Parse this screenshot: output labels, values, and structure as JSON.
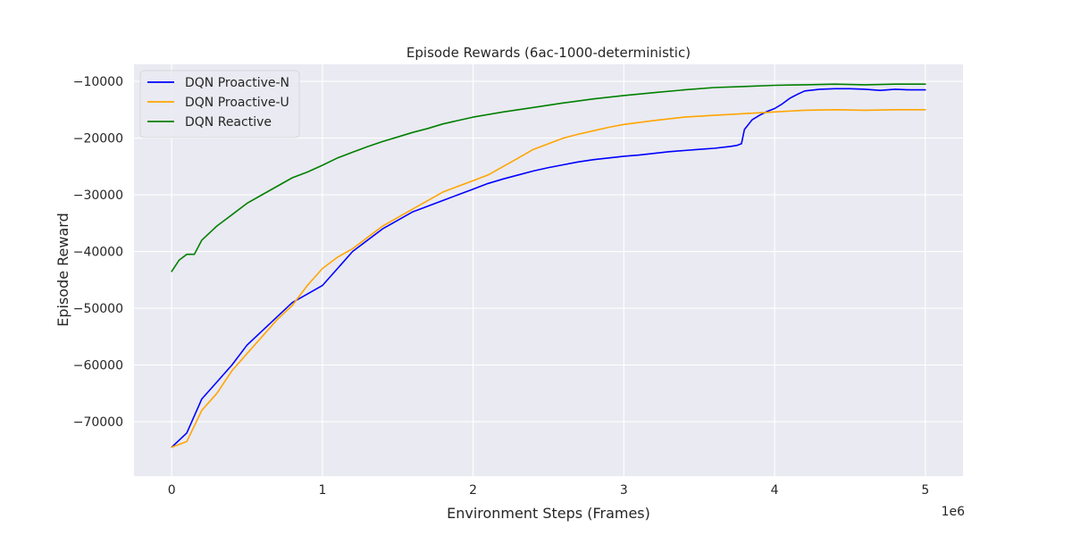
{
  "chart_data": {
    "type": "line",
    "title": "Episode Rewards (6ac-1000-deterministic)",
    "xlabel": "Environment Steps (Frames)",
    "ylabel": "Episode Reward",
    "x_multiplier_label": "1e6",
    "x_scale": 1000000,
    "xlim": [
      -0.25,
      5.25
    ],
    "ylim": [
      -79600,
      -7000
    ],
    "xticks": [
      0,
      1,
      2,
      3,
      4,
      5
    ],
    "xtick_labels": [
      "0",
      "1",
      "2",
      "3",
      "4",
      "5"
    ],
    "yticks": [
      -70000,
      -60000,
      -50000,
      -40000,
      -30000,
      -20000,
      -10000
    ],
    "ytick_labels": [
      "−70000",
      "−60000",
      "−50000",
      "−40000",
      "−30000",
      "−20000",
      "−10000"
    ],
    "grid": true,
    "legend_position": "top-left",
    "background_color": "#eaeaf2",
    "series": [
      {
        "name": "DQN Proactive-N",
        "color": "#0000ff",
        "x": [
          0,
          0.1,
          0.2,
          0.3,
          0.4,
          0.5,
          0.6,
          0.7,
          0.8,
          0.9,
          1.0,
          1.1,
          1.2,
          1.3,
          1.4,
          1.5,
          1.6,
          1.7,
          1.8,
          1.9,
          2.0,
          2.1,
          2.2,
          2.3,
          2.4,
          2.5,
          2.6,
          2.7,
          2.8,
          2.9,
          3.0,
          3.1,
          3.2,
          3.3,
          3.4,
          3.5,
          3.6,
          3.7,
          3.75,
          3.78,
          3.8,
          3.85,
          3.9,
          3.95,
          4.0,
          4.05,
          4.1,
          4.15,
          4.2,
          4.3,
          4.4,
          4.5,
          4.6,
          4.7,
          4.8,
          4.9,
          5.0
        ],
        "y": [
          -74500,
          -72000,
          -66000,
          -63000,
          -60000,
          -56500,
          -54000,
          -51500,
          -49000,
          -47500,
          -46000,
          -43000,
          -40000,
          -38000,
          -36000,
          -34500,
          -33000,
          -32000,
          -31000,
          -30000,
          -29000,
          -28000,
          -27200,
          -26500,
          -25800,
          -25200,
          -24700,
          -24200,
          -23800,
          -23500,
          -23200,
          -23000,
          -22700,
          -22400,
          -22200,
          -22000,
          -21800,
          -21500,
          -21300,
          -21000,
          -18500,
          -16800,
          -16000,
          -15300,
          -14800,
          -14000,
          -13000,
          -12300,
          -11700,
          -11400,
          -11300,
          -11300,
          -11400,
          -11600,
          -11400,
          -11500,
          -11500
        ]
      },
      {
        "name": "DQN Proactive-U",
        "color": "#ffa500",
        "x": [
          0,
          0.1,
          0.2,
          0.3,
          0.4,
          0.5,
          0.6,
          0.7,
          0.8,
          0.9,
          1.0,
          1.1,
          1.2,
          1.3,
          1.4,
          1.5,
          1.6,
          1.7,
          1.8,
          1.9,
          2.0,
          2.1,
          2.2,
          2.3,
          2.4,
          2.5,
          2.6,
          2.7,
          2.8,
          2.9,
          3.0,
          3.2,
          3.4,
          3.6,
          3.8,
          4.0,
          4.2,
          4.4,
          4.6,
          4.8,
          5.0
        ],
        "y": [
          -74500,
          -73500,
          -68000,
          -65000,
          -61000,
          -58000,
          -55000,
          -52000,
          -49500,
          -46000,
          -43000,
          -41000,
          -39500,
          -37500,
          -35500,
          -34000,
          -32500,
          -31000,
          -29500,
          -28500,
          -27500,
          -26500,
          -25000,
          -23500,
          -22000,
          -21000,
          -20000,
          -19300,
          -18700,
          -18100,
          -17600,
          -16900,
          -16300,
          -16000,
          -15700,
          -15400,
          -15100,
          -15000,
          -15100,
          -15000,
          -15000
        ]
      },
      {
        "name": "DQN Reactive",
        "color": "#008000",
        "x": [
          0,
          0.05,
          0.1,
          0.15,
          0.2,
          0.3,
          0.4,
          0.5,
          0.6,
          0.7,
          0.8,
          0.9,
          1.0,
          1.1,
          1.2,
          1.3,
          1.4,
          1.5,
          1.6,
          1.7,
          1.8,
          1.9,
          2.0,
          2.2,
          2.4,
          2.6,
          2.8,
          3.0,
          3.2,
          3.4,
          3.6,
          3.8,
          4.0,
          4.2,
          4.4,
          4.6,
          4.8,
          5.0
        ],
        "y": [
          -43500,
          -41500,
          -40500,
          -40500,
          -38000,
          -35500,
          -33500,
          -31500,
          -30000,
          -28500,
          -27000,
          -26000,
          -24800,
          -23500,
          -22500,
          -21500,
          -20600,
          -19800,
          -19000,
          -18300,
          -17500,
          -16900,
          -16300,
          -15400,
          -14600,
          -13800,
          -13100,
          -12500,
          -12000,
          -11500,
          -11100,
          -10900,
          -10700,
          -10600,
          -10500,
          -10600,
          -10500,
          -10500
        ]
      }
    ]
  }
}
